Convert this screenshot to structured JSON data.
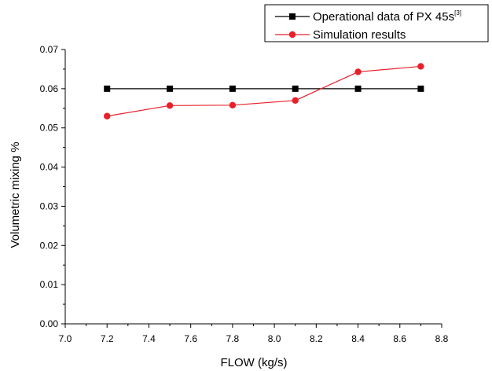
{
  "chart_data": {
    "type": "line",
    "xlabel": "FLOW (kg/s)",
    "ylabel": "Volumetric mixing %",
    "xlim": [
      7.0,
      8.8
    ],
    "ylim": [
      0.0,
      0.07
    ],
    "xticks": [
      "7.0",
      "7.2",
      "7.4",
      "7.6",
      "7.8",
      "8.0",
      "8.2",
      "8.4",
      "8.6",
      "8.8"
    ],
    "yticks": [
      "0.00",
      "0.01",
      "0.02",
      "0.03",
      "0.04",
      "0.05",
      "0.06",
      "0.07"
    ],
    "grid": false,
    "legend_position": "top-right",
    "series": [
      {
        "name": "Operational data of PX 45s",
        "name_superscript": "[3]",
        "color": "#000000",
        "marker": "square",
        "x": [
          7.2,
          7.5,
          7.8,
          8.1,
          8.4,
          8.7
        ],
        "values": [
          0.06,
          0.06,
          0.06,
          0.06,
          0.06,
          0.06
        ]
      },
      {
        "name": "Simulation results",
        "color": "#e8202a",
        "marker": "circle",
        "x": [
          7.2,
          7.5,
          7.8,
          8.1,
          8.4,
          8.7
        ],
        "values": [
          0.053,
          0.0557,
          0.0558,
          0.057,
          0.0643,
          0.0657
        ]
      }
    ]
  }
}
